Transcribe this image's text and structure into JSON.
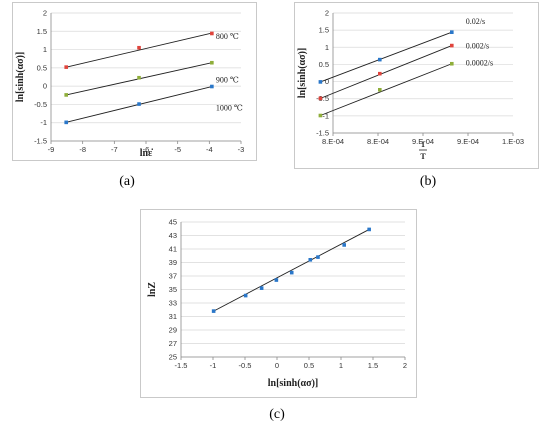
{
  "captions": {
    "a": "(a)",
    "b": "(b)",
    "c": "(c)"
  },
  "chart_data": [
    {
      "panel": "a",
      "type": "scatter",
      "title": "",
      "xlabel": "lnε̇",
      "ylabel": "ln[sinh(ασ)]",
      "xlim": [
        -9,
        -3
      ],
      "ylim": [
        -1.5,
        2
      ],
      "xticks": [
        -9,
        -8,
        -7,
        -6,
        -5,
        -4,
        -3
      ],
      "yticks": [
        -1.5,
        -1,
        -0.5,
        0,
        0.5,
        1,
        1.5,
        2
      ],
      "grid": "horizontal",
      "series": [
        {
          "name": "800 ℃",
          "color": "#e0443c",
          "x": [
            -8.52,
            -6.22,
            -3.92
          ],
          "y": [
            0.52,
            1.05,
            1.44
          ],
          "fit": [
            [
              -8.52,
              0.52
            ],
            [
              -3.92,
              1.45
            ]
          ]
        },
        {
          "name": "900 ℃",
          "color": "#8fae3a",
          "x": [
            -8.52,
            -6.22,
            -3.92
          ],
          "y": [
            -0.24,
            0.23,
            0.64
          ],
          "fit": [
            [
              -8.52,
              -0.24
            ],
            [
              -3.92,
              0.64
            ]
          ]
        },
        {
          "name": "1000 ℃",
          "color": "#2a77c9",
          "x": [
            -8.52,
            -6.22,
            -3.92
          ],
          "y": [
            -0.99,
            -0.49,
            -0.01
          ],
          "fit": [
            [
              -8.52,
              -0.99
            ],
            [
              -3.92,
              -0.01
            ]
          ]
        }
      ]
    },
    {
      "panel": "b",
      "type": "scatter",
      "title": "",
      "xlabel": "1/T",
      "ylabel": "ln[sinh(ασ)]",
      "xlim": [
        0.0008,
        0.001
      ],
      "ylim": [
        -1.5,
        2
      ],
      "xticks": [
        0.0008,
        0.00085,
        0.0009,
        0.00095,
        0.001
      ],
      "xtick_labels": [
        "8.E-04",
        "8.E-04",
        "9.E-04",
        "9.E-04",
        "1.E-03"
      ],
      "yticks": [
        -1.5,
        -1,
        -0.5,
        0,
        0.5,
        1,
        1.5,
        2
      ],
      "grid": "horizontal",
      "series": [
        {
          "name": "0.02/s",
          "color": "#2a77c9",
          "x": [
            0.000786,
            0.000852,
            0.000932
          ],
          "y": [
            -0.01,
            0.64,
            1.44
          ],
          "fit": [
            [
              0.000786,
              -0.01
            ],
            [
              0.000932,
              1.44
            ]
          ]
        },
        {
          "name": "0.002/s",
          "color": "#e0443c",
          "x": [
            0.000786,
            0.000852,
            0.000932
          ],
          "y": [
            -0.49,
            0.23,
            1.05
          ],
          "fit": [
            [
              0.000786,
              -0.49
            ],
            [
              0.000932,
              1.05
            ]
          ]
        },
        {
          "name": "0.0002/s",
          "color": "#8fae3a",
          "x": [
            0.000786,
            0.000852,
            0.000932
          ],
          "y": [
            -0.99,
            -0.24,
            0.52
          ],
          "fit": [
            [
              0.000786,
              -0.99
            ],
            [
              0.000932,
              0.52
            ]
          ]
        }
      ]
    },
    {
      "panel": "c",
      "type": "scatter",
      "title": "",
      "xlabel": "ln[sinh(ασ)]",
      "ylabel": "lnZ",
      "xlim": [
        -1.5,
        2
      ],
      "ylim": [
        25,
        45
      ],
      "xticks": [
        -1.5,
        -1,
        -0.5,
        0,
        0.5,
        1,
        1.5,
        2
      ],
      "yticks": [
        25,
        27,
        29,
        31,
        33,
        35,
        37,
        39,
        41,
        43,
        45
      ],
      "grid": "horizontal",
      "series": [
        {
          "name": "",
          "color": "#2a77c9",
          "x": [
            -0.99,
            -0.49,
            -0.24,
            -0.01,
            0.23,
            0.52,
            0.64,
            1.05,
            1.44
          ],
          "y": [
            31.8,
            34.1,
            35.2,
            36.4,
            37.5,
            39.4,
            39.8,
            41.6,
            43.9
          ],
          "fit": [
            [
              -0.99,
              31.8
            ],
            [
              1.44,
              43.9
            ]
          ]
        }
      ]
    }
  ]
}
